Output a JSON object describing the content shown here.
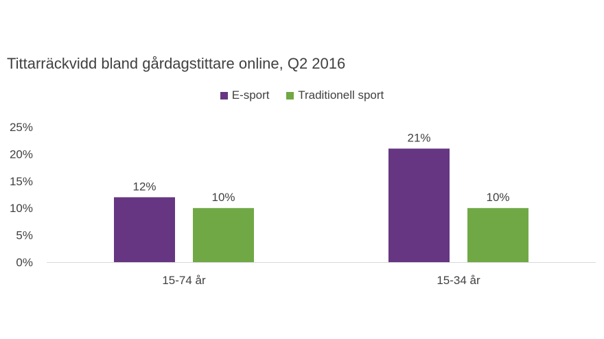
{
  "chart_data": {
    "type": "bar",
    "title": "Tittarräckvidd bland gårdagstittare online, Q2 2016",
    "categories": [
      "15-74 år",
      "15-34 år"
    ],
    "series": [
      {
        "name": "E-sport",
        "values": [
          12,
          21
        ],
        "labels": [
          "12%",
          "21%"
        ],
        "color": "#663682"
      },
      {
        "name": "Traditionell sport",
        "values": [
          10,
          10
        ],
        "labels": [
          "10%",
          "10%"
        ],
        "color": "#70a846"
      }
    ],
    "ylim": [
      0,
      25
    ],
    "yticks": [
      0,
      5,
      10,
      15,
      20,
      25
    ],
    "ytick_labels": [
      "0%",
      "5%",
      "10%",
      "15%",
      "20%",
      "25%"
    ],
    "legend": "top-center",
    "grid": false
  }
}
